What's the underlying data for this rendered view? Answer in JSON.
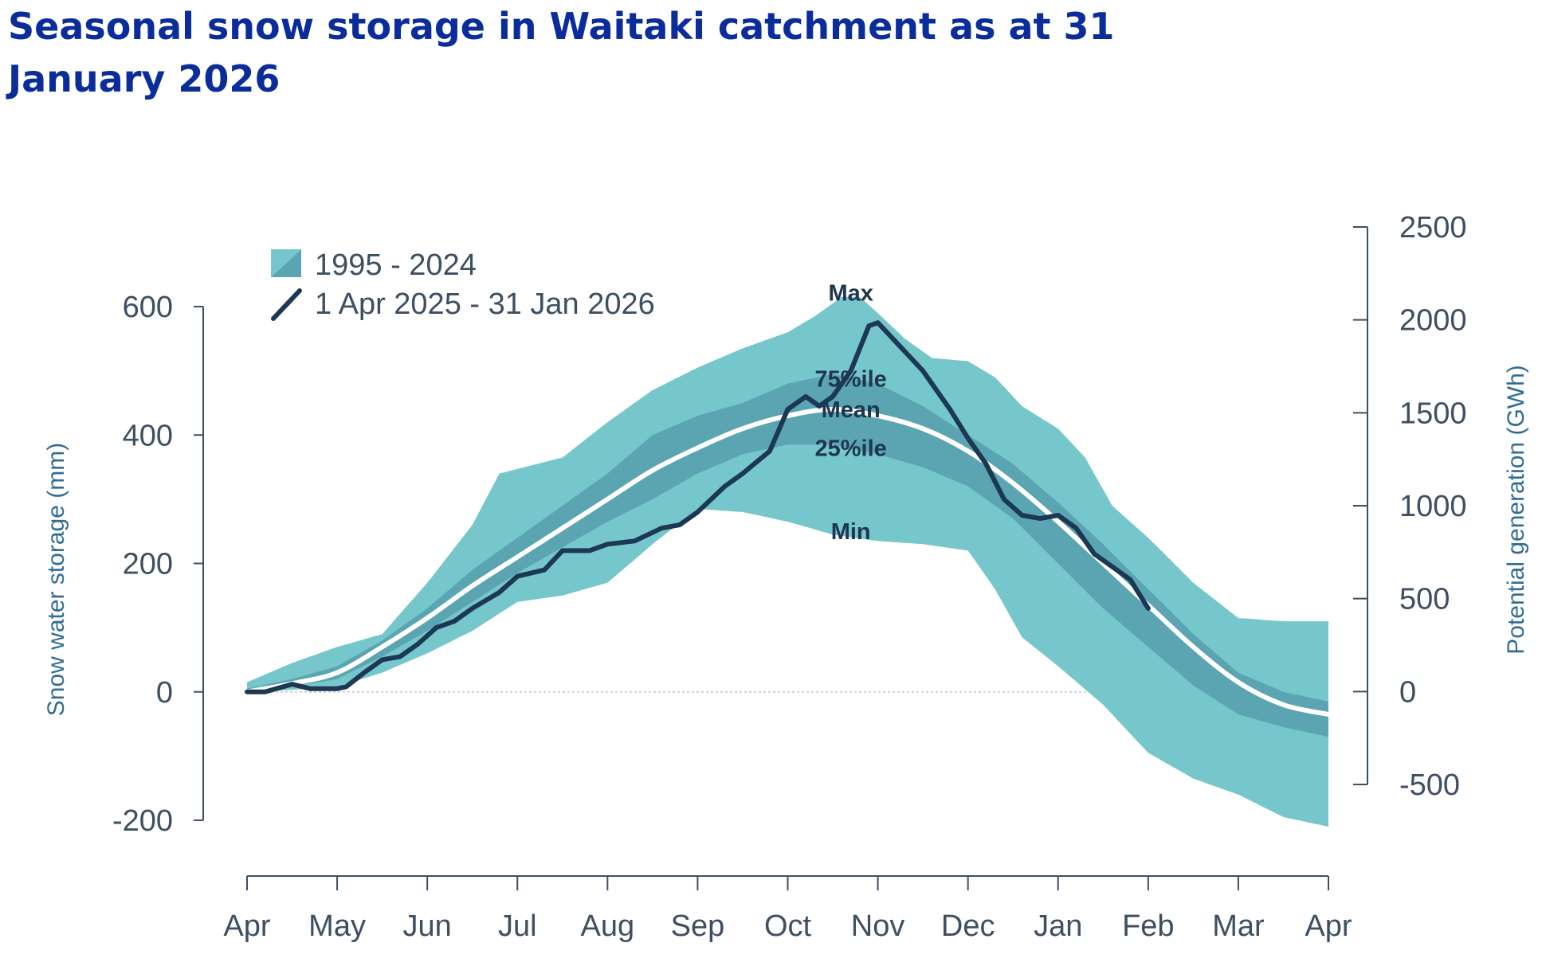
{
  "title": "Seasonal snow storage in Waitaki catchment as at 31 January 2026",
  "chart_data": {
    "type": "area",
    "title": "Seasonal snow storage in Waitaki catchment as at 31 January 2026",
    "x_unit": "month index from 1 April (0 = Apr, 12 = following Apr)",
    "categories": [
      "Apr",
      "May",
      "Jun",
      "Jul",
      "Aug",
      "Sep",
      "Oct",
      "Nov",
      "Dec",
      "Jan",
      "Feb",
      "Mar",
      "Apr"
    ],
    "ylabel": "Snow water storage (mm)",
    "ylim": [
      -200,
      600
    ],
    "yticks": [
      "600",
      "400",
      "200",
      "0",
      "-200"
    ],
    "ylabel_right": "Potential generation (GWh)",
    "ylim_right": [
      -500,
      2500
    ],
    "yticks_right": [
      "2500",
      "2000",
      "1500",
      "1000",
      "500",
      "0",
      "-500"
    ],
    "legend": {
      "band": "1995 - 2024",
      "current": "1 Apr 2025 - 31 Jan 2026"
    },
    "band_labels": {
      "max": "Max",
      "p75": "75%ile",
      "mean": "Mean",
      "p25": "25%ile",
      "min": "Min"
    },
    "colors": {
      "outer_band": "#76c7cc",
      "inner_band": "#5aa5b1",
      "mean_line": "#ffffff",
      "current_line": "#1c3854",
      "axis": "#3d4f63",
      "zero_line": "#c9d3d8"
    },
    "series": [
      {
        "name": "Max",
        "points": [
          [
            0,
            15
          ],
          [
            0.5,
            45
          ],
          [
            1,
            70
          ],
          [
            1.5,
            90
          ],
          [
            2,
            170
          ],
          [
            2.5,
            260
          ],
          [
            2.8,
            340
          ],
          [
            3.5,
            365
          ],
          [
            4,
            420
          ],
          [
            4.5,
            470
          ],
          [
            5,
            505
          ],
          [
            5.5,
            535
          ],
          [
            6,
            560
          ],
          [
            6.3,
            585
          ],
          [
            6.6,
            615
          ],
          [
            6.8,
            615
          ],
          [
            7,
            590
          ],
          [
            7.3,
            550
          ],
          [
            7.6,
            520
          ],
          [
            8,
            515
          ],
          [
            8.3,
            490
          ],
          [
            8.6,
            445
          ],
          [
            9,
            410
          ],
          [
            9.3,
            365
          ],
          [
            9.6,
            290
          ],
          [
            10,
            240
          ],
          [
            10.5,
            170
          ],
          [
            11,
            115
          ],
          [
            11.5,
            110
          ],
          [
            12,
            110
          ]
        ]
      },
      {
        "name": "75%ile",
        "points": [
          [
            0,
            5
          ],
          [
            0.5,
            20
          ],
          [
            1,
            40
          ],
          [
            1.5,
            80
          ],
          [
            2,
            130
          ],
          [
            2.5,
            190
          ],
          [
            3,
            240
          ],
          [
            3.5,
            290
          ],
          [
            4,
            340
          ],
          [
            4.5,
            400
          ],
          [
            5,
            430
          ],
          [
            5.5,
            450
          ],
          [
            6,
            480
          ],
          [
            6.5,
            495
          ],
          [
            7,
            480
          ],
          [
            7.5,
            445
          ],
          [
            8,
            400
          ],
          [
            8.5,
            355
          ],
          [
            9,
            295
          ],
          [
            9.5,
            230
          ],
          [
            10,
            160
          ],
          [
            10.5,
            90
          ],
          [
            11,
            30
          ],
          [
            11.5,
            0
          ],
          [
            12,
            -15
          ]
        ]
      },
      {
        "name": "Mean",
        "points": [
          [
            0,
            0
          ],
          [
            0.5,
            13
          ],
          [
            1,
            30
          ],
          [
            1.5,
            70
          ],
          [
            2,
            115
          ],
          [
            2.5,
            165
          ],
          [
            3,
            210
          ],
          [
            3.5,
            255
          ],
          [
            4,
            300
          ],
          [
            4.5,
            345
          ],
          [
            5,
            380
          ],
          [
            5.5,
            410
          ],
          [
            6,
            430
          ],
          [
            6.5,
            440
          ],
          [
            7,
            430
          ],
          [
            7.5,
            410
          ],
          [
            8,
            375
          ],
          [
            8.5,
            325
          ],
          [
            9,
            265
          ],
          [
            9.5,
            200
          ],
          [
            10,
            135
          ],
          [
            10.5,
            70
          ],
          [
            11,
            15
          ],
          [
            11.5,
            -20
          ],
          [
            12,
            -35
          ]
        ]
      },
      {
        "name": "25%ile",
        "points": [
          [
            0,
            0
          ],
          [
            0.5,
            8
          ],
          [
            1,
            20
          ],
          [
            1.5,
            55
          ],
          [
            2,
            95
          ],
          [
            2.5,
            140
          ],
          [
            3,
            185
          ],
          [
            3.5,
            225
          ],
          [
            4,
            265
          ],
          [
            4.5,
            300
          ],
          [
            5,
            340
          ],
          [
            5.5,
            370
          ],
          [
            6,
            385
          ],
          [
            6.5,
            385
          ],
          [
            7,
            370
          ],
          [
            7.5,
            350
          ],
          [
            8,
            320
          ],
          [
            8.5,
            270
          ],
          [
            9,
            200
          ],
          [
            9.5,
            130
          ],
          [
            10,
            70
          ],
          [
            10.5,
            10
          ],
          [
            11,
            -35
          ],
          [
            11.5,
            -55
          ],
          [
            12,
            -70
          ]
        ]
      },
      {
        "name": "Min",
        "points": [
          [
            0,
            0
          ],
          [
            0.5,
            3
          ],
          [
            1,
            8
          ],
          [
            1.5,
            30
          ],
          [
            2,
            60
          ],
          [
            2.5,
            95
          ],
          [
            3,
            140
          ],
          [
            3.5,
            150
          ],
          [
            4,
            170
          ],
          [
            4.5,
            230
          ],
          [
            5,
            285
          ],
          [
            5.5,
            280
          ],
          [
            6,
            265
          ],
          [
            6.5,
            245
          ],
          [
            7,
            235
          ],
          [
            7.5,
            230
          ],
          [
            8,
            220
          ],
          [
            8.3,
            160
          ],
          [
            8.6,
            85
          ],
          [
            9,
            40
          ],
          [
            9.5,
            -20
          ],
          [
            10,
            -95
          ],
          [
            10.5,
            -135
          ],
          [
            11,
            -160
          ],
          [
            11.5,
            -195
          ],
          [
            12,
            -210
          ]
        ]
      },
      {
        "name": "1 Apr 2025 - 31 Jan 2026",
        "points": [
          [
            0,
            0
          ],
          [
            0.2,
            0
          ],
          [
            0.5,
            12
          ],
          [
            0.7,
            5
          ],
          [
            1,
            5
          ],
          [
            1.1,
            8
          ],
          [
            1.3,
            30
          ],
          [
            1.5,
            50
          ],
          [
            1.7,
            55
          ],
          [
            1.9,
            75
          ],
          [
            2.1,
            100
          ],
          [
            2.3,
            110
          ],
          [
            2.5,
            130
          ],
          [
            2.8,
            155
          ],
          [
            3,
            180
          ],
          [
            3.3,
            190
          ],
          [
            3.5,
            220
          ],
          [
            3.8,
            220
          ],
          [
            4,
            230
          ],
          [
            4.3,
            235
          ],
          [
            4.6,
            255
          ],
          [
            4.8,
            260
          ],
          [
            5,
            280
          ],
          [
            5.3,
            320
          ],
          [
            5.5,
            340
          ],
          [
            5.8,
            375
          ],
          [
            6,
            440
          ],
          [
            6.2,
            460
          ],
          [
            6.35,
            445
          ],
          [
            6.5,
            460
          ],
          [
            6.7,
            500
          ],
          [
            6.9,
            570
          ],
          [
            7,
            575
          ],
          [
            7.2,
            545
          ],
          [
            7.5,
            500
          ],
          [
            7.8,
            440
          ],
          [
            8,
            395
          ],
          [
            8.2,
            355
          ],
          [
            8.4,
            300
          ],
          [
            8.6,
            275
          ],
          [
            8.8,
            270
          ],
          [
            9,
            275
          ],
          [
            9.2,
            255
          ],
          [
            9.4,
            215
          ],
          [
            9.6,
            195
          ],
          [
            9.8,
            175
          ],
          [
            10,
            130
          ]
        ]
      }
    ]
  }
}
